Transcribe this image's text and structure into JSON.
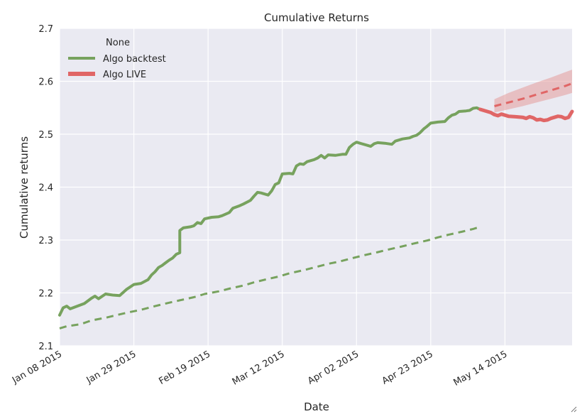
{
  "chart_data": {
    "type": "line",
    "title": "Cumulative Returns",
    "xlabel": "Date",
    "ylabel": "Cumulative returns",
    "ylim": [
      2.1,
      2.7
    ],
    "y_ticks": [
      "2.1",
      "2.2",
      "2.3",
      "2.4",
      "2.5",
      "2.6",
      "2.7"
    ],
    "xlim": [
      "2015-01-08",
      "2015-06-02"
    ],
    "x_ticks": [
      {
        "date": "2015-01-08",
        "label": "Jan 08 2015"
      },
      {
        "date": "2015-01-29",
        "label": "Jan 29 2015"
      },
      {
        "date": "2015-02-19",
        "label": "Feb 19 2015"
      },
      {
        "date": "2015-03-12",
        "label": "Mar 12 2015"
      },
      {
        "date": "2015-04-02",
        "label": "Apr 02 2015"
      },
      {
        "date": "2015-04-23",
        "label": "Apr 23 2015"
      },
      {
        "date": "2015-05-14",
        "label": "May 14 2015"
      }
    ],
    "grid": true,
    "legend": {
      "title": "None",
      "position": "top-left",
      "entries": [
        "Algo backtest",
        "Algo LIVE"
      ]
    },
    "colors": {
      "backtest": "#77a25e",
      "live": "#e06666",
      "band": "#e39a9a",
      "background": "#eaeaf2"
    },
    "series": [
      {
        "name": "Algo backtest",
        "points": [
          [
            "2015-01-08",
            2.158
          ],
          [
            "2015-01-09",
            2.172
          ],
          [
            "2015-01-10",
            2.175
          ],
          [
            "2015-01-11",
            2.17
          ],
          [
            "2015-01-13",
            2.175
          ],
          [
            "2015-01-15",
            2.18
          ],
          [
            "2015-01-17",
            2.19
          ],
          [
            "2015-01-18",
            2.194
          ],
          [
            "2015-01-19",
            2.189
          ],
          [
            "2015-01-21",
            2.198
          ],
          [
            "2015-01-23",
            2.196
          ],
          [
            "2015-01-25",
            2.195
          ],
          [
            "2015-01-27",
            2.207
          ],
          [
            "2015-01-29",
            2.216
          ],
          [
            "2015-01-31",
            2.218
          ],
          [
            "2015-02-02",
            2.225
          ],
          [
            "2015-02-03",
            2.234
          ],
          [
            "2015-02-04",
            2.24
          ],
          [
            "2015-02-05",
            2.248
          ],
          [
            "2015-02-06",
            2.252
          ],
          [
            "2015-02-07",
            2.257
          ],
          [
            "2015-02-08",
            2.262
          ],
          [
            "2015-02-09",
            2.266
          ],
          [
            "2015-02-10",
            2.273
          ],
          [
            "2015-02-11",
            2.276
          ],
          [
            "2015-02-11",
            2.318
          ],
          [
            "2015-02-12",
            2.323
          ],
          [
            "2015-02-14",
            2.325
          ],
          [
            "2015-02-15",
            2.327
          ],
          [
            "2015-02-16",
            2.333
          ],
          [
            "2015-02-17",
            2.331
          ],
          [
            "2015-02-18",
            2.34
          ],
          [
            "2015-02-20",
            2.343
          ],
          [
            "2015-02-22",
            2.344
          ],
          [
            "2015-02-23",
            2.346
          ],
          [
            "2015-02-25",
            2.352
          ],
          [
            "2015-02-26",
            2.36
          ],
          [
            "2015-02-28",
            2.365
          ],
          [
            "2015-03-01",
            2.368
          ],
          [
            "2015-03-03",
            2.375
          ],
          [
            "2015-03-04",
            2.383
          ],
          [
            "2015-03-05",
            2.39
          ],
          [
            "2015-03-06",
            2.389
          ],
          [
            "2015-03-07",
            2.387
          ],
          [
            "2015-03-08",
            2.385
          ],
          [
            "2015-03-09",
            2.393
          ],
          [
            "2015-03-10",
            2.405
          ],
          [
            "2015-03-11",
            2.408
          ],
          [
            "2015-03-12",
            2.425
          ],
          [
            "2015-03-14",
            2.426
          ],
          [
            "2015-03-15",
            2.425
          ],
          [
            "2015-03-16",
            2.44
          ],
          [
            "2015-03-17",
            2.444
          ],
          [
            "2015-03-18",
            2.443
          ],
          [
            "2015-03-19",
            2.448
          ],
          [
            "2015-03-21",
            2.452
          ],
          [
            "2015-03-22",
            2.455
          ],
          [
            "2015-03-23",
            2.46
          ],
          [
            "2015-03-24",
            2.455
          ],
          [
            "2015-03-25",
            2.461
          ],
          [
            "2015-03-27",
            2.46
          ],
          [
            "2015-03-29",
            2.462
          ],
          [
            "2015-03-30",
            2.462
          ],
          [
            "2015-03-31",
            2.475
          ],
          [
            "2015-04-01",
            2.481
          ],
          [
            "2015-04-02",
            2.485
          ],
          [
            "2015-04-03",
            2.483
          ],
          [
            "2015-04-05",
            2.479
          ],
          [
            "2015-04-06",
            2.477
          ],
          [
            "2015-04-07",
            2.482
          ],
          [
            "2015-04-08",
            2.484
          ],
          [
            "2015-04-10",
            2.483
          ],
          [
            "2015-04-12",
            2.481
          ],
          [
            "2015-04-13",
            2.487
          ],
          [
            "2015-04-15",
            2.491
          ],
          [
            "2015-04-17",
            2.493
          ],
          [
            "2015-04-18",
            2.496
          ],
          [
            "2015-04-19",
            2.498
          ],
          [
            "2015-04-20",
            2.503
          ],
          [
            "2015-04-21",
            2.51
          ],
          [
            "2015-04-22",
            2.515
          ],
          [
            "2015-04-23",
            2.521
          ],
          [
            "2015-04-25",
            2.523
          ],
          [
            "2015-04-27",
            2.524
          ],
          [
            "2015-04-28",
            2.531
          ],
          [
            "2015-04-29",
            2.536
          ],
          [
            "2015-04-30",
            2.538
          ],
          [
            "2015-05-01",
            2.543
          ],
          [
            "2015-05-03",
            2.544
          ],
          [
            "2015-05-04",
            2.545
          ],
          [
            "2015-05-05",
            2.549
          ],
          [
            "2015-05-06",
            2.55
          ],
          [
            "2015-05-07",
            2.547
          ]
        ]
      },
      {
        "name": "Algo backtest",
        "style": "dashed",
        "points": [
          [
            "2015-01-08",
            2.133
          ],
          [
            "2015-01-10",
            2.137
          ],
          [
            "2015-01-14",
            2.141
          ],
          [
            "2015-01-17",
            2.148
          ],
          [
            "2015-01-21",
            2.153
          ],
          [
            "2015-01-24",
            2.158
          ],
          [
            "2015-01-28",
            2.164
          ],
          [
            "2015-01-31",
            2.168
          ],
          [
            "2015-02-04",
            2.175
          ],
          [
            "2015-02-07",
            2.18
          ],
          [
            "2015-02-11",
            2.186
          ],
          [
            "2015-02-15",
            2.192
          ],
          [
            "2015-02-18",
            2.198
          ],
          [
            "2015-02-22",
            2.203
          ],
          [
            "2015-02-25",
            2.208
          ],
          [
            "2015-03-01",
            2.214
          ],
          [
            "2015-03-04",
            2.22
          ],
          [
            "2015-03-07",
            2.225
          ],
          [
            "2015-03-11",
            2.231
          ],
          [
            "2015-03-14",
            2.237
          ],
          [
            "2015-03-18",
            2.243
          ],
          [
            "2015-03-21",
            2.248
          ],
          [
            "2015-03-25",
            2.255
          ],
          [
            "2015-03-28",
            2.259
          ],
          [
            "2015-04-01",
            2.266
          ],
          [
            "2015-04-04",
            2.271
          ],
          [
            "2015-04-08",
            2.277
          ],
          [
            "2015-04-11",
            2.282
          ],
          [
            "2015-04-15",
            2.288
          ],
          [
            "2015-04-18",
            2.293
          ],
          [
            "2015-04-22",
            2.299
          ],
          [
            "2015-04-25",
            2.305
          ],
          [
            "2015-04-28",
            2.31
          ],
          [
            "2015-05-02",
            2.316
          ],
          [
            "2015-05-05",
            2.321
          ],
          [
            "2015-05-07",
            2.325
          ]
        ]
      },
      {
        "name": "Algo LIVE",
        "points": [
          [
            "2015-05-07",
            2.547
          ],
          [
            "2015-05-08",
            2.545
          ],
          [
            "2015-05-09",
            2.543
          ],
          [
            "2015-05-10",
            2.541
          ],
          [
            "2015-05-11",
            2.537
          ],
          [
            "2015-05-12",
            2.535
          ],
          [
            "2015-05-13",
            2.538
          ],
          [
            "2015-05-14",
            2.536
          ],
          [
            "2015-05-15",
            2.534
          ],
          [
            "2015-05-17",
            2.533
          ],
          [
            "2015-05-19",
            2.532
          ],
          [
            "2015-05-20",
            2.53
          ],
          [
            "2015-05-21",
            2.533
          ],
          [
            "2015-05-22",
            2.531
          ],
          [
            "2015-05-23",
            2.527
          ],
          [
            "2015-05-24",
            2.528
          ],
          [
            "2015-05-25",
            2.526
          ],
          [
            "2015-05-26",
            2.527
          ],
          [
            "2015-05-27",
            2.53
          ],
          [
            "2015-05-28",
            2.532
          ],
          [
            "2015-05-29",
            2.534
          ],
          [
            "2015-05-30",
            2.533
          ],
          [
            "2015-05-31",
            2.53
          ],
          [
            "2015-06-01",
            2.532
          ],
          [
            "2015-06-02",
            2.543
          ]
        ]
      },
      {
        "name": "Algo LIVE",
        "style": "dashed",
        "points": [
          [
            "2015-05-11",
            2.553
          ],
          [
            "2015-05-15",
            2.56
          ],
          [
            "2015-05-19",
            2.567
          ],
          [
            "2015-05-23",
            2.575
          ],
          [
            "2015-05-27",
            2.583
          ],
          [
            "2015-05-31",
            2.591
          ],
          [
            "2015-06-02",
            2.596
          ]
        ],
        "band_upper": [
          [
            "2015-05-11",
            2.566
          ],
          [
            "2015-05-15",
            2.578
          ],
          [
            "2015-05-19",
            2.588
          ],
          [
            "2015-05-23",
            2.598
          ],
          [
            "2015-05-27",
            2.607
          ],
          [
            "2015-05-31",
            2.617
          ],
          [
            "2015-06-02",
            2.622
          ]
        ],
        "band_lower": [
          [
            "2015-05-11",
            2.541
          ],
          [
            "2015-05-15",
            2.547
          ],
          [
            "2015-05-19",
            2.553
          ],
          [
            "2015-05-23",
            2.56
          ],
          [
            "2015-05-27",
            2.567
          ],
          [
            "2015-05-31",
            2.574
          ],
          [
            "2015-06-02",
            2.578
          ]
        ]
      }
    ]
  }
}
